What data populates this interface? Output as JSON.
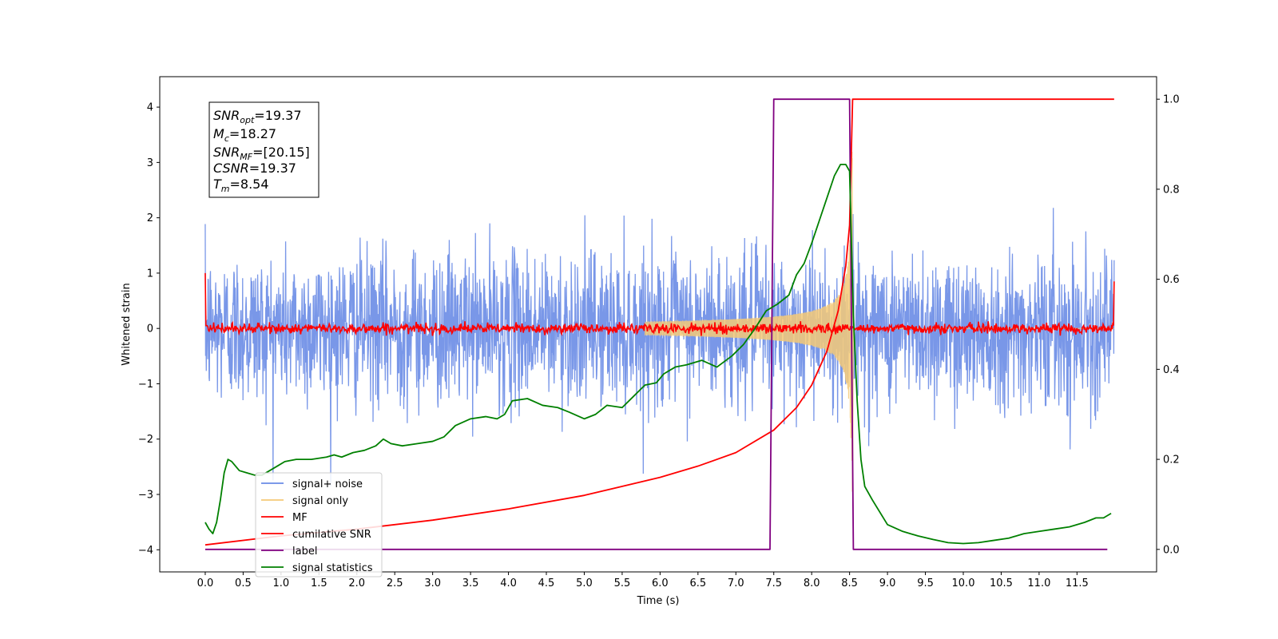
{
  "chart_data": {
    "type": "line",
    "xlabel": "Time (s)",
    "ylabel": "Whitened strain",
    "xlim": [
      -0.6,
      12.55
    ],
    "ylim": [
      -4.4,
      4.55
    ],
    "ylim_right": [
      -0.05,
      1.05
    ],
    "grid": false,
    "legend_position": "lower-left",
    "x_ticks": [
      "0.0",
      "0.5",
      "1.0",
      "1.5",
      "2.0",
      "2.5",
      "3.0",
      "3.5",
      "4.0",
      "4.5",
      "5.0",
      "5.5",
      "6.0",
      "6.5",
      "7.0",
      "7.5",
      "8.0",
      "8.5",
      "9.0",
      "9.5",
      "10.0",
      "10.5",
      "11.0",
      "11.5"
    ],
    "y_ticks_left": [
      "−4",
      "−3",
      "−2",
      "−1",
      "0",
      "1",
      "2",
      "3",
      "4"
    ],
    "y_ticks_right": [
      "0.0",
      "0.2",
      "0.4",
      "0.6",
      "0.8",
      "1.0"
    ],
    "annotation": {
      "snr_opt": {
        "base": "SNR",
        "sub": "opt",
        "value": "=19.37"
      },
      "mc": {
        "base": "M",
        "sub": "c",
        "value": "=18.27"
      },
      "snr_mf": {
        "base": "SNR",
        "sub": "MF",
        "value": "=[20.15]"
      },
      "csnr": {
        "base": "CSNR",
        "sub": "",
        "value": "=19.37"
      },
      "tm": {
        "base": "T",
        "sub": "m",
        "value": "=8.54"
      }
    },
    "legend": [
      {
        "label": "signal+ noise",
        "color": "#6a8ce6"
      },
      {
        "label": "signal only",
        "color": "#f5c977"
      },
      {
        "label": "MF",
        "color": "#ff0000"
      },
      {
        "label": "cumilative SNR",
        "color": "#ff0000"
      },
      {
        "label": "label",
        "color": "#800080"
      },
      {
        "label": "signal statistics",
        "color": "#008000"
      }
    ],
    "series": [
      {
        "name": "signal+ noise",
        "axis": "left",
        "color": "#6a8ce6",
        "style": "white noise, approx. std 0.7, extremes about ±3.4, x from 0.0 to 11.99"
      },
      {
        "name": "signal only",
        "axis": "left",
        "color": "#f5c977",
        "style": "chirp, amplitude growing toward merger at about 8.54 s (about ±3.2), zero afterwards"
      },
      {
        "name": "MF",
        "axis": "left",
        "color": "#ff0000",
        "style": "noise around 0 with std about 0.05, spike to about 1.0 at 0.0 and about 0.85 at 11.99"
      },
      {
        "name": "cumilative SNR",
        "axis": "right",
        "points": [
          [
            0.0,
            0.01
          ],
          [
            1.0,
            0.03
          ],
          [
            2.0,
            0.045
          ],
          [
            3.0,
            0.065
          ],
          [
            4.0,
            0.09
          ],
          [
            5.0,
            0.12
          ],
          [
            6.0,
            0.16
          ],
          [
            6.5,
            0.185
          ],
          [
            7.0,
            0.215
          ],
          [
            7.5,
            0.265
          ],
          [
            7.8,
            0.315
          ],
          [
            8.0,
            0.365
          ],
          [
            8.2,
            0.44
          ],
          [
            8.35,
            0.53
          ],
          [
            8.45,
            0.63
          ],
          [
            8.5,
            0.72
          ],
          [
            8.54,
            1.0
          ],
          [
            11.99,
            1.0
          ]
        ]
      },
      {
        "name": "label",
        "axis": "right",
        "points": [
          [
            0.0,
            0.0
          ],
          [
            7.45,
            0.0
          ],
          [
            7.5,
            1.0
          ],
          [
            8.5,
            1.0
          ],
          [
            8.55,
            0.0
          ],
          [
            11.9,
            0.0
          ]
        ]
      },
      {
        "name": "signal statistics",
        "axis": "right",
        "points": [
          [
            0.0,
            0.06
          ],
          [
            0.05,
            0.045
          ],
          [
            0.1,
            0.035
          ],
          [
            0.15,
            0.06
          ],
          [
            0.2,
            0.11
          ],
          [
            0.25,
            0.17
          ],
          [
            0.3,
            0.2
          ],
          [
            0.35,
            0.195
          ],
          [
            0.45,
            0.175
          ],
          [
            0.55,
            0.17
          ],
          [
            0.65,
            0.165
          ],
          [
            0.75,
            0.165
          ],
          [
            0.85,
            0.175
          ],
          [
            0.95,
            0.185
          ],
          [
            1.05,
            0.195
          ],
          [
            1.2,
            0.2
          ],
          [
            1.4,
            0.2
          ],
          [
            1.6,
            0.205
          ],
          [
            1.7,
            0.21
          ],
          [
            1.8,
            0.205
          ],
          [
            1.95,
            0.215
          ],
          [
            2.1,
            0.22
          ],
          [
            2.25,
            0.23
          ],
          [
            2.35,
            0.245
          ],
          [
            2.45,
            0.235
          ],
          [
            2.6,
            0.23
          ],
          [
            2.8,
            0.235
          ],
          [
            3.0,
            0.24
          ],
          [
            3.15,
            0.25
          ],
          [
            3.3,
            0.275
          ],
          [
            3.5,
            0.29
          ],
          [
            3.7,
            0.295
          ],
          [
            3.85,
            0.29
          ],
          [
            3.95,
            0.3
          ],
          [
            4.05,
            0.33
          ],
          [
            4.25,
            0.335
          ],
          [
            4.45,
            0.32
          ],
          [
            4.65,
            0.315
          ],
          [
            4.8,
            0.305
          ],
          [
            5.0,
            0.29
          ],
          [
            5.15,
            0.3
          ],
          [
            5.3,
            0.32
          ],
          [
            5.5,
            0.315
          ],
          [
            5.65,
            0.34
          ],
          [
            5.8,
            0.365
          ],
          [
            5.95,
            0.37
          ],
          [
            6.05,
            0.39
          ],
          [
            6.2,
            0.405
          ],
          [
            6.35,
            0.41
          ],
          [
            6.55,
            0.42
          ],
          [
            6.75,
            0.405
          ],
          [
            6.95,
            0.43
          ],
          [
            7.1,
            0.455
          ],
          [
            7.25,
            0.49
          ],
          [
            7.4,
            0.53
          ],
          [
            7.55,
            0.545
          ],
          [
            7.7,
            0.565
          ],
          [
            7.8,
            0.61
          ],
          [
            7.9,
            0.635
          ],
          [
            8.0,
            0.68
          ],
          [
            8.1,
            0.73
          ],
          [
            8.2,
            0.78
          ],
          [
            8.3,
            0.83
          ],
          [
            8.38,
            0.855
          ],
          [
            8.45,
            0.855
          ],
          [
            8.5,
            0.84
          ],
          [
            8.55,
            0.52
          ],
          [
            8.6,
            0.33
          ],
          [
            8.65,
            0.2
          ],
          [
            8.7,
            0.14
          ],
          [
            8.8,
            0.11
          ],
          [
            9.0,
            0.055
          ],
          [
            9.2,
            0.04
          ],
          [
            9.4,
            0.03
          ],
          [
            9.6,
            0.022
          ],
          [
            9.8,
            0.015
          ],
          [
            10.0,
            0.013
          ],
          [
            10.2,
            0.015
          ],
          [
            10.4,
            0.02
          ],
          [
            10.6,
            0.025
          ],
          [
            10.8,
            0.035
          ],
          [
            11.0,
            0.04
          ],
          [
            11.2,
            0.045
          ],
          [
            11.4,
            0.05
          ],
          [
            11.6,
            0.06
          ],
          [
            11.75,
            0.07
          ],
          [
            11.85,
            0.07
          ],
          [
            11.95,
            0.08
          ]
        ]
      }
    ]
  }
}
